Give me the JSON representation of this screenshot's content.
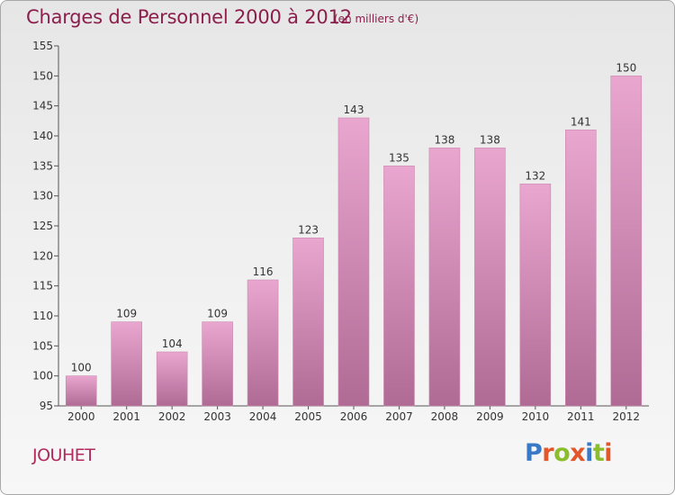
{
  "title": "Charges de Personnel 2000 à 2012",
  "subtitle": "(en milliers d'€)",
  "commune": "JOUHET",
  "brand": {
    "text": "Proxiti",
    "letter_colors": [
      "#3a78c8",
      "#e2562a",
      "#8cbd2e",
      "#e2562a",
      "#3a78c8",
      "#8cbd2e",
      "#e2562a"
    ]
  },
  "colors": {
    "bar_top": "#e9a6cf",
    "bar_bottom": "#b06b95",
    "axis": "#555555",
    "grid": "#c8c8c8"
  },
  "chart_data": {
    "type": "bar",
    "title": "Charges de Personnel 2000 à 2012",
    "subtitle": "(en milliers d'€)",
    "categories": [
      "2000",
      "2001",
      "2002",
      "2003",
      "2004",
      "2005",
      "2006",
      "2007",
      "2008",
      "2009",
      "2010",
      "2011",
      "2012"
    ],
    "values": [
      100,
      109,
      104,
      109,
      116,
      123,
      143,
      135,
      138,
      138,
      132,
      141,
      150
    ],
    "ylim": [
      95,
      155
    ],
    "yticks": [
      95,
      100,
      105,
      110,
      115,
      120,
      125,
      130,
      135,
      140,
      145,
      150,
      155
    ],
    "xlabel": "",
    "ylabel": "",
    "grid": false,
    "data_labels": true
  }
}
